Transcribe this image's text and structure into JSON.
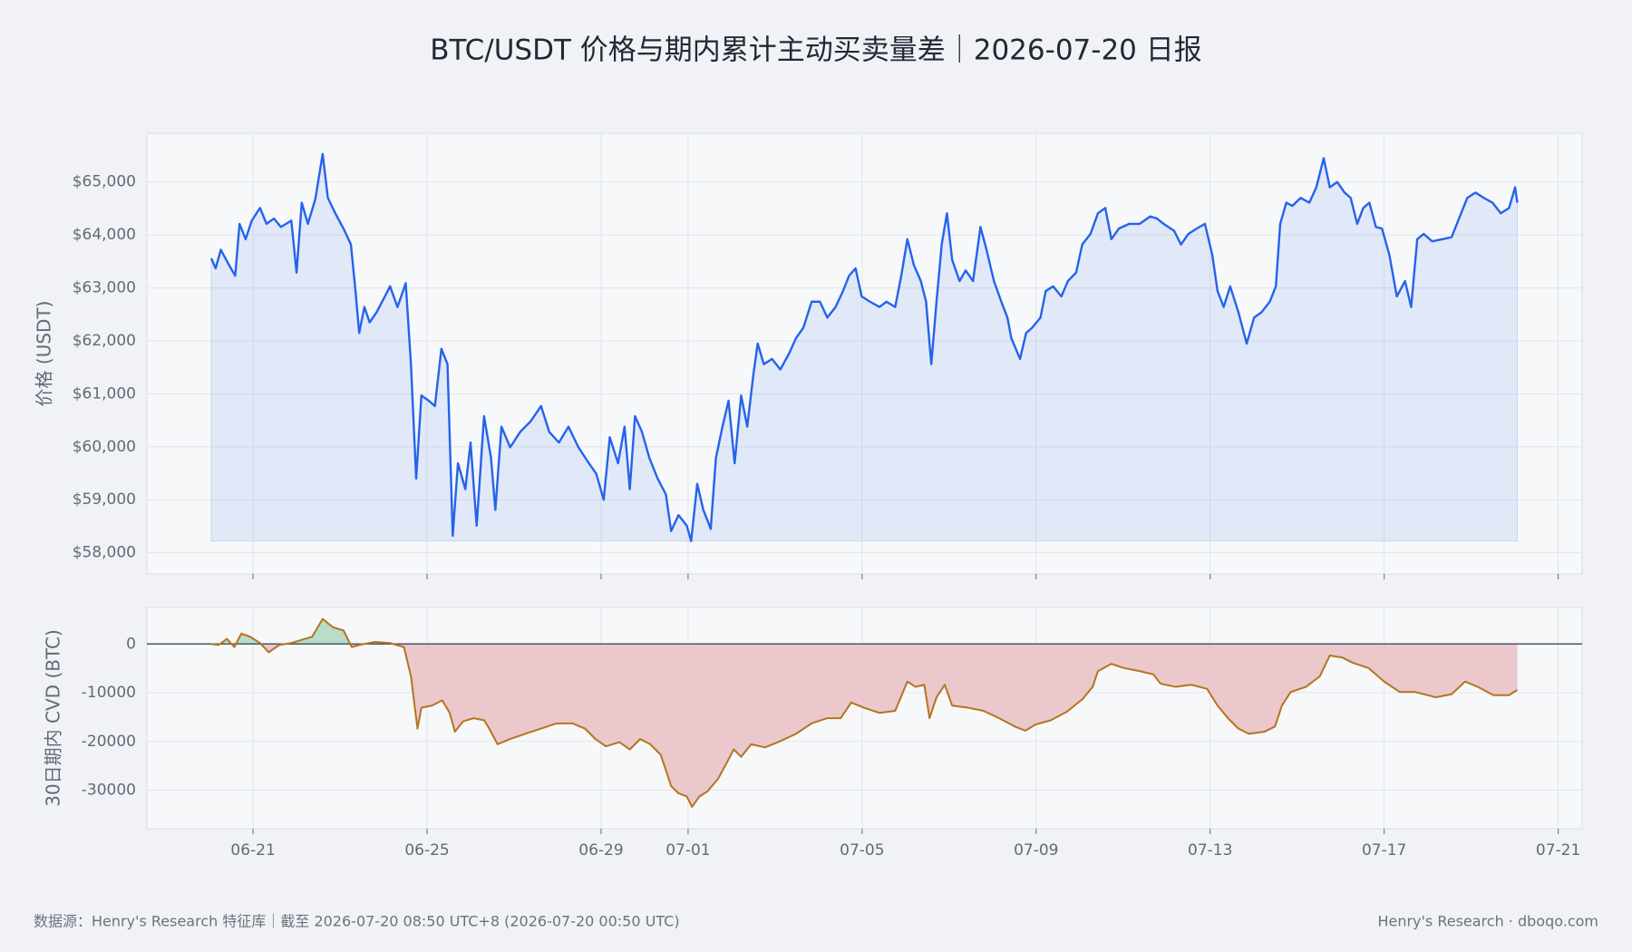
{
  "chart_data": [
    {
      "type": "line",
      "title": "BTC/USDT 价格与期内累计主动买卖量差｜2026-07-20 日报",
      "ylabel": "价格 (USDT)",
      "color": "#2563eb",
      "fill_color": "#2563eb",
      "grid": true,
      "xlim": [
        169.56,
        202.55
      ],
      "ylim": [
        57600,
        65920
      ],
      "xticks": [
        172,
        176,
        180,
        182,
        186,
        190,
        194,
        198,
        202
      ],
      "yticks": [
        {
          "value": 58000,
          "label": "$58,000"
        },
        {
          "value": 59000,
          "label": "$59,000"
        },
        {
          "value": 60000,
          "label": "$60,000"
        },
        {
          "value": 61000,
          "label": "$61,000"
        },
        {
          "value": 62000,
          "label": "$62,000"
        },
        {
          "value": 63000,
          "label": "$63,000"
        },
        {
          "value": 64000,
          "label": "$64,000"
        },
        {
          "value": 65000,
          "label": "$65,000"
        }
      ],
      "x": [
        171.04,
        171.14,
        171.26,
        171.45,
        171.59,
        171.69,
        171.83,
        171.97,
        172.16,
        172.31,
        172.48,
        172.64,
        172.88,
        173.0,
        173.12,
        173.26,
        173.43,
        173.6,
        173.72,
        173.89,
        174.08,
        174.25,
        174.36,
        174.44,
        174.56,
        174.68,
        174.84,
        175.03,
        175.15,
        175.32,
        175.51,
        175.63,
        175.75,
        175.87,
        176.04,
        176.18,
        176.33,
        176.47,
        176.59,
        176.71,
        176.88,
        177.0,
        177.14,
        177.31,
        177.47,
        177.57,
        177.71,
        177.91,
        178.14,
        178.38,
        178.62,
        178.81,
        179.03,
        179.25,
        179.48,
        179.72,
        179.89,
        180.06,
        180.2,
        180.39,
        180.54,
        180.66,
        180.78,
        180.94,
        181.11,
        181.3,
        181.49,
        181.61,
        181.78,
        181.97,
        182.07,
        182.21,
        182.35,
        182.52,
        182.64,
        182.79,
        182.93,
        183.07,
        183.22,
        183.36,
        183.5,
        183.6,
        183.74,
        183.93,
        184.12,
        184.32,
        184.48,
        184.65,
        184.84,
        185.03,
        185.2,
        185.39,
        185.56,
        185.7,
        185.85,
        185.99,
        186.18,
        186.4,
        186.56,
        186.76,
        186.9,
        187.04,
        187.19,
        187.35,
        187.47,
        187.59,
        187.71,
        187.83,
        187.95,
        188.07,
        188.24,
        188.38,
        188.55,
        188.72,
        188.86,
        189.03,
        189.2,
        189.34,
        189.43,
        189.63,
        189.77,
        189.91,
        190.1,
        190.22,
        190.39,
        190.58,
        190.73,
        190.92,
        191.06,
        191.25,
        191.42,
        191.59,
        191.73,
        191.9,
        192.14,
        192.38,
        192.62,
        192.78,
        192.93,
        193.17,
        193.33,
        193.5,
        193.69,
        193.88,
        194.05,
        194.17,
        194.31,
        194.46,
        194.65,
        194.84,
        195.01,
        195.18,
        195.37,
        195.51,
        195.61,
        195.75,
        195.89,
        196.08,
        196.28,
        196.44,
        196.61,
        196.75,
        196.92,
        197.09,
        197.23,
        197.38,
        197.52,
        197.66,
        197.81,
        197.95,
        198.12,
        198.29,
        198.48,
        198.62,
        198.76,
        198.91,
        199.1,
        199.34,
        199.55,
        199.72,
        199.91,
        200.1,
        200.29,
        200.49,
        200.68,
        200.87,
        201.01,
        201.06
      ],
      "values": [
        63560,
        63370,
        63720,
        63430,
        63230,
        64210,
        63920,
        64270,
        64510,
        64210,
        64310,
        64150,
        64270,
        63290,
        64610,
        64210,
        64670,
        65530,
        64700,
        64410,
        64120,
        63820,
        62900,
        62150,
        62640,
        62350,
        62540,
        62840,
        63030,
        62640,
        63090,
        61560,
        59400,
        60970,
        60870,
        60770,
        61850,
        61560,
        58320,
        59690,
        59200,
        60080,
        58510,
        60580,
        59790,
        58810,
        60380,
        59990,
        60280,
        60480,
        60770,
        60280,
        60080,
        60380,
        59990,
        59690,
        59490,
        59000,
        60180,
        59690,
        60380,
        59200,
        60580,
        60280,
        59790,
        59400,
        59100,
        58410,
        58710,
        58510,
        58220,
        59300,
        58810,
        58450,
        59790,
        60380,
        60870,
        59690,
        60970,
        60380,
        61360,
        61950,
        61560,
        61660,
        61460,
        61760,
        62050,
        62250,
        62740,
        62740,
        62440,
        62640,
        62940,
        63230,
        63370,
        62840,
        62740,
        62640,
        62740,
        62640,
        63230,
        63920,
        63430,
        63130,
        62740,
        61560,
        62740,
        63820,
        64410,
        63530,
        63130,
        63330,
        63130,
        64150,
        63720,
        63130,
        62740,
        62440,
        62050,
        61660,
        62150,
        62250,
        62440,
        62940,
        63030,
        62840,
        63130,
        63290,
        63820,
        64020,
        64410,
        64510,
        63920,
        64120,
        64210,
        64210,
        64350,
        64310,
        64210,
        64080,
        63820,
        64020,
        64120,
        64210,
        63620,
        62940,
        62640,
        63030,
        62540,
        61950,
        62440,
        62540,
        62740,
        63030,
        64210,
        64610,
        64550,
        64700,
        64610,
        64900,
        65450,
        64900,
        65000,
        64800,
        64700,
        64210,
        64510,
        64610,
        64150,
        64120,
        63620,
        62840,
        63130,
        62640,
        63920,
        64020,
        63880,
        63920,
        63960,
        64310,
        64700,
        64800,
        64700,
        64610,
        64410,
        64510,
        64900,
        64610
      ]
    },
    {
      "type": "area",
      "ylabel": "30日期内 CVD (BTC)",
      "color": "#b5741f",
      "positive_color": "#a9d6bd",
      "negative_color": "#e9c2c7",
      "zero_color": "#4a5563",
      "grid": true,
      "xlim": [
        169.56,
        202.55
      ],
      "ylim": [
        -37900,
        7500
      ],
      "xticks": [
        {
          "value": 172,
          "label": "06-21"
        },
        {
          "value": 176,
          "label": "06-25"
        },
        {
          "value": 180,
          "label": "06-29"
        },
        {
          "value": 182,
          "label": "07-01"
        },
        {
          "value": 186,
          "label": "07-05"
        },
        {
          "value": 190,
          "label": "07-09"
        },
        {
          "value": 194,
          "label": "07-13"
        },
        {
          "value": 198,
          "label": "07-17"
        },
        {
          "value": 202,
          "label": "07-21"
        }
      ],
      "yticks": [
        0,
        -10000,
        -20000,
        -30000
      ],
      "x": [
        171.04,
        171.21,
        171.4,
        171.57,
        171.73,
        171.93,
        172.16,
        172.36,
        172.6,
        172.88,
        173.12,
        173.36,
        173.6,
        173.84,
        174.08,
        174.27,
        174.44,
        174.8,
        175.15,
        175.47,
        175.63,
        175.78,
        175.87,
        176.11,
        176.35,
        176.52,
        176.64,
        176.83,
        177.07,
        177.31,
        177.43,
        177.62,
        177.91,
        178.26,
        178.62,
        178.98,
        179.34,
        179.63,
        179.87,
        180.11,
        180.42,
        180.66,
        180.9,
        181.13,
        181.37,
        181.61,
        181.78,
        181.97,
        182.09,
        182.26,
        182.45,
        182.69,
        182.86,
        183.05,
        183.22,
        183.45,
        183.77,
        184.12,
        184.48,
        184.84,
        185.2,
        185.51,
        185.75,
        186.04,
        186.4,
        186.76,
        187.04,
        187.23,
        187.43,
        187.55,
        187.71,
        187.9,
        188.07,
        188.43,
        188.79,
        189.15,
        189.51,
        189.75,
        189.99,
        190.34,
        190.7,
        191.06,
        191.3,
        191.42,
        191.73,
        192.02,
        192.38,
        192.69,
        192.86,
        193.21,
        193.57,
        193.93,
        194.17,
        194.41,
        194.65,
        194.89,
        195.25,
        195.49,
        195.65,
        195.85,
        196.2,
        196.52,
        196.75,
        197.04,
        197.28,
        197.64,
        198.0,
        198.36,
        198.72,
        199.19,
        199.55,
        199.86,
        200.15,
        200.51,
        200.87,
        201.06
      ],
      "values": [
        0,
        -200,
        1070,
        -640,
        2140,
        1500,
        200,
        -1710,
        -200,
        200,
        860,
        1500,
        5140,
        3430,
        2790,
        -640,
        -200,
        430,
        200,
        -640,
        -6640,
        -17360,
        -13070,
        -12640,
        -11570,
        -14140,
        -18000,
        -15860,
        -15220,
        -15640,
        -17360,
        -20570,
        -19500,
        -18430,
        -17360,
        -16290,
        -16290,
        -17360,
        -19500,
        -21000,
        -20140,
        -21640,
        -19500,
        -20570,
        -22710,
        -29140,
        -30640,
        -31290,
        -33430,
        -31290,
        -30210,
        -27640,
        -24860,
        -21640,
        -23140,
        -20570,
        -21210,
        -19930,
        -18430,
        -16290,
        -15220,
        -15220,
        -12000,
        -13070,
        -14140,
        -13710,
        -7710,
        -8790,
        -8360,
        -15220,
        -10930,
        -8360,
        -12640,
        -13070,
        -13710,
        -15220,
        -16930,
        -17790,
        -16500,
        -15640,
        -13930,
        -11360,
        -8790,
        -5570,
        -4070,
        -4930,
        -5570,
        -6210,
        -8140,
        -8790,
        -8360,
        -9210,
        -12640,
        -15220,
        -17360,
        -18430,
        -18000,
        -16930,
        -12640,
        -9860,
        -8790,
        -6640,
        -2360,
        -2790,
        -3860,
        -4930,
        -7710,
        -9860,
        -9860,
        -10930,
        -10290,
        -7710,
        -8790,
        -10500,
        -10500,
        -9430
      ]
    }
  ],
  "footer": {
    "source": "数据源：Henry's Research 特征库｜截至 2026-07-20 08:50 UTC+8 (2026-07-20 00:50 UTC)",
    "credit": "Henry's Research · dboqo.com"
  }
}
